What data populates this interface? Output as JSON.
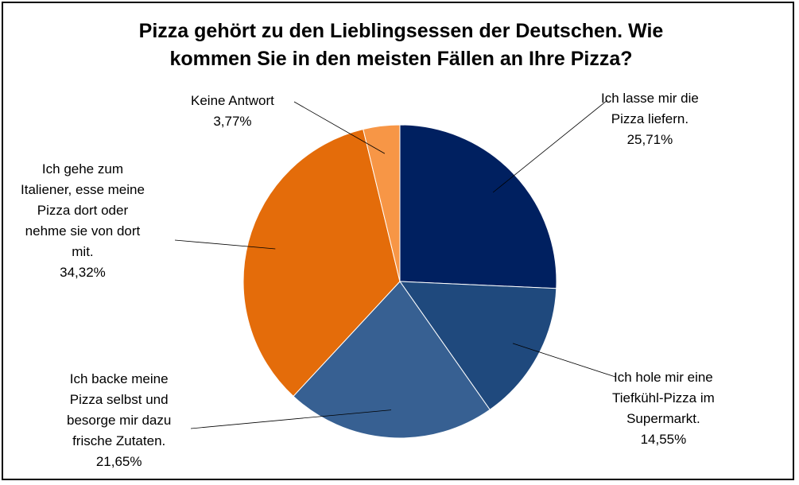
{
  "chart_data": {
    "type": "pie",
    "title_lines": [
      "Pizza gehört zu den Lieblingsessen der Deutschen. Wie",
      "kommen Sie in den meisten Fällen an Ihre Pizza?"
    ],
    "slices": [
      {
        "label_lines": [
          "Ich lasse mir die",
          "Pizza liefern."
        ],
        "value_text": "25,71%",
        "value": 25.71,
        "color": "#002060"
      },
      {
        "label_lines": [
          "Ich hole mir eine",
          "Tiefkühl-Pizza im",
          "Supermarkt."
        ],
        "value_text": "14,55%",
        "value": 14.55,
        "color": "#1F497D"
      },
      {
        "label_lines": [
          "Ich backe meine",
          "Pizza selbst und",
          "besorge mir dazu",
          "frische Zutaten."
        ],
        "value_text": "21,65%",
        "value": 21.65,
        "color": "#376092"
      },
      {
        "label_lines": [
          "Ich gehe zum",
          "Italiener, esse meine",
          "Pizza dort oder",
          "nehme sie von dort",
          "mit."
        ],
        "value_text": "34,32%",
        "value": 34.32,
        "color": "#E46C0A"
      },
      {
        "label_lines": [
          "Keine Antwort"
        ],
        "value_text": "3,77%",
        "value": 3.77,
        "color": "#F79646"
      }
    ]
  }
}
